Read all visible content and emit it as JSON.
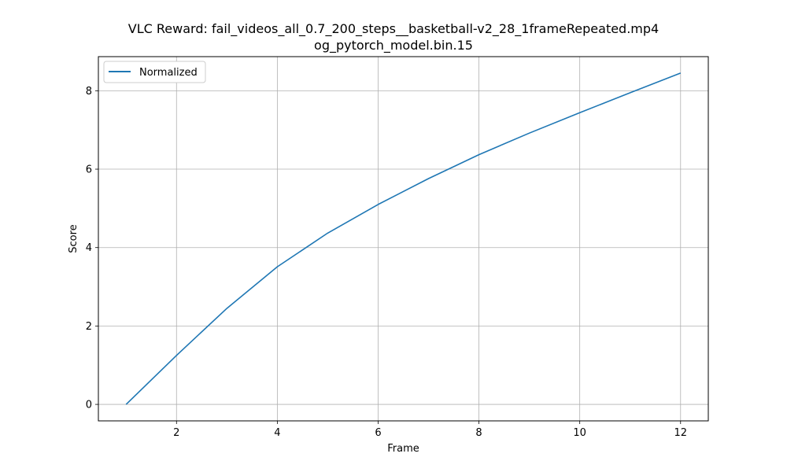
{
  "chart_data": {
    "type": "line",
    "title": "VLC Reward: fail_videos_all_0.7_200_steps__basketball-v2_28_1frameRepeated.mp4",
    "subtitle": "og_pytorch_model.bin.15",
    "xlabel": "Frame",
    "ylabel": "Score",
    "xlim": [
      0.45,
      12.55
    ],
    "ylim": [
      -0.42,
      8.87
    ],
    "xticks": [
      2,
      4,
      6,
      8,
      10,
      12
    ],
    "yticks": [
      0,
      2,
      4,
      6,
      8
    ],
    "grid": true,
    "legend_position": "top-left",
    "series": [
      {
        "name": "Normalized",
        "color": "#1f77b4",
        "x": [
          1,
          2,
          3,
          4,
          5,
          6,
          7,
          8,
          9,
          10,
          11,
          12
        ],
        "values": [
          0.0,
          1.25,
          2.45,
          3.51,
          4.37,
          5.1,
          5.76,
          6.37,
          6.92,
          7.44,
          7.95,
          8.45
        ]
      }
    ]
  }
}
